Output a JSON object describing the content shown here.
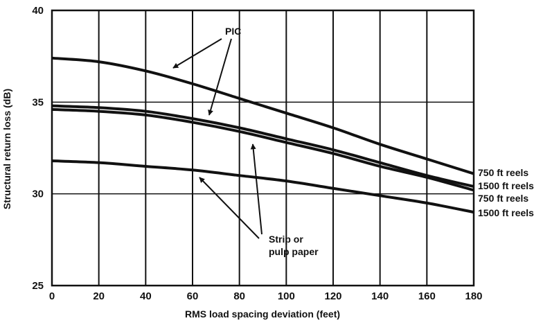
{
  "chart_data": {
    "type": "line",
    "title": "",
    "xlabel": "RMS load spacing deviation (feet)",
    "ylabel": "Structural return loss (dB)",
    "xlim": [
      0,
      180
    ],
    "ylim": [
      25,
      40
    ],
    "x_ticks": [
      "0",
      "20",
      "40",
      "60",
      "80",
      "100",
      "120",
      "140",
      "160",
      "180"
    ],
    "y_ticks": [
      "25",
      "30",
      "35",
      "40"
    ],
    "grid": "vertical every 20 ft; horizontal at 30 and 35 dB",
    "series": [
      {
        "name": "750 ft reels",
        "x": [
          0,
          20,
          40,
          60,
          80,
          100,
          120,
          140,
          160,
          180
        ],
        "y": [
          37.4,
          37.2,
          36.7,
          36.0,
          35.2,
          34.4,
          33.6,
          32.7,
          31.9,
          31.1
        ]
      },
      {
        "name": "1500 ft reels",
        "x": [
          0,
          20,
          40,
          60,
          80,
          100,
          120,
          140,
          160,
          180
        ],
        "y": [
          34.8,
          34.7,
          34.5,
          34.1,
          33.6,
          33.0,
          32.4,
          31.7,
          31.0,
          30.4
        ]
      },
      {
        "name": "750 ft reels",
        "x": [
          0,
          20,
          40,
          60,
          80,
          100,
          120,
          140,
          160,
          180
        ],
        "y": [
          34.6,
          34.5,
          34.3,
          33.9,
          33.4,
          32.8,
          32.2,
          31.5,
          30.9,
          30.2
        ]
      },
      {
        "name": "1500 ft reels",
        "x": [
          0,
          20,
          40,
          60,
          80,
          100,
          120,
          140,
          160,
          180
        ],
        "y": [
          31.8,
          31.7,
          31.5,
          31.3,
          31.0,
          30.7,
          30.3,
          29.9,
          29.5,
          29.0
        ]
      }
    ],
    "annotations": [
      {
        "text": "PIC"
      },
      {
        "text": "Strip or"
      },
      {
        "text": "pulp paper"
      }
    ]
  }
}
